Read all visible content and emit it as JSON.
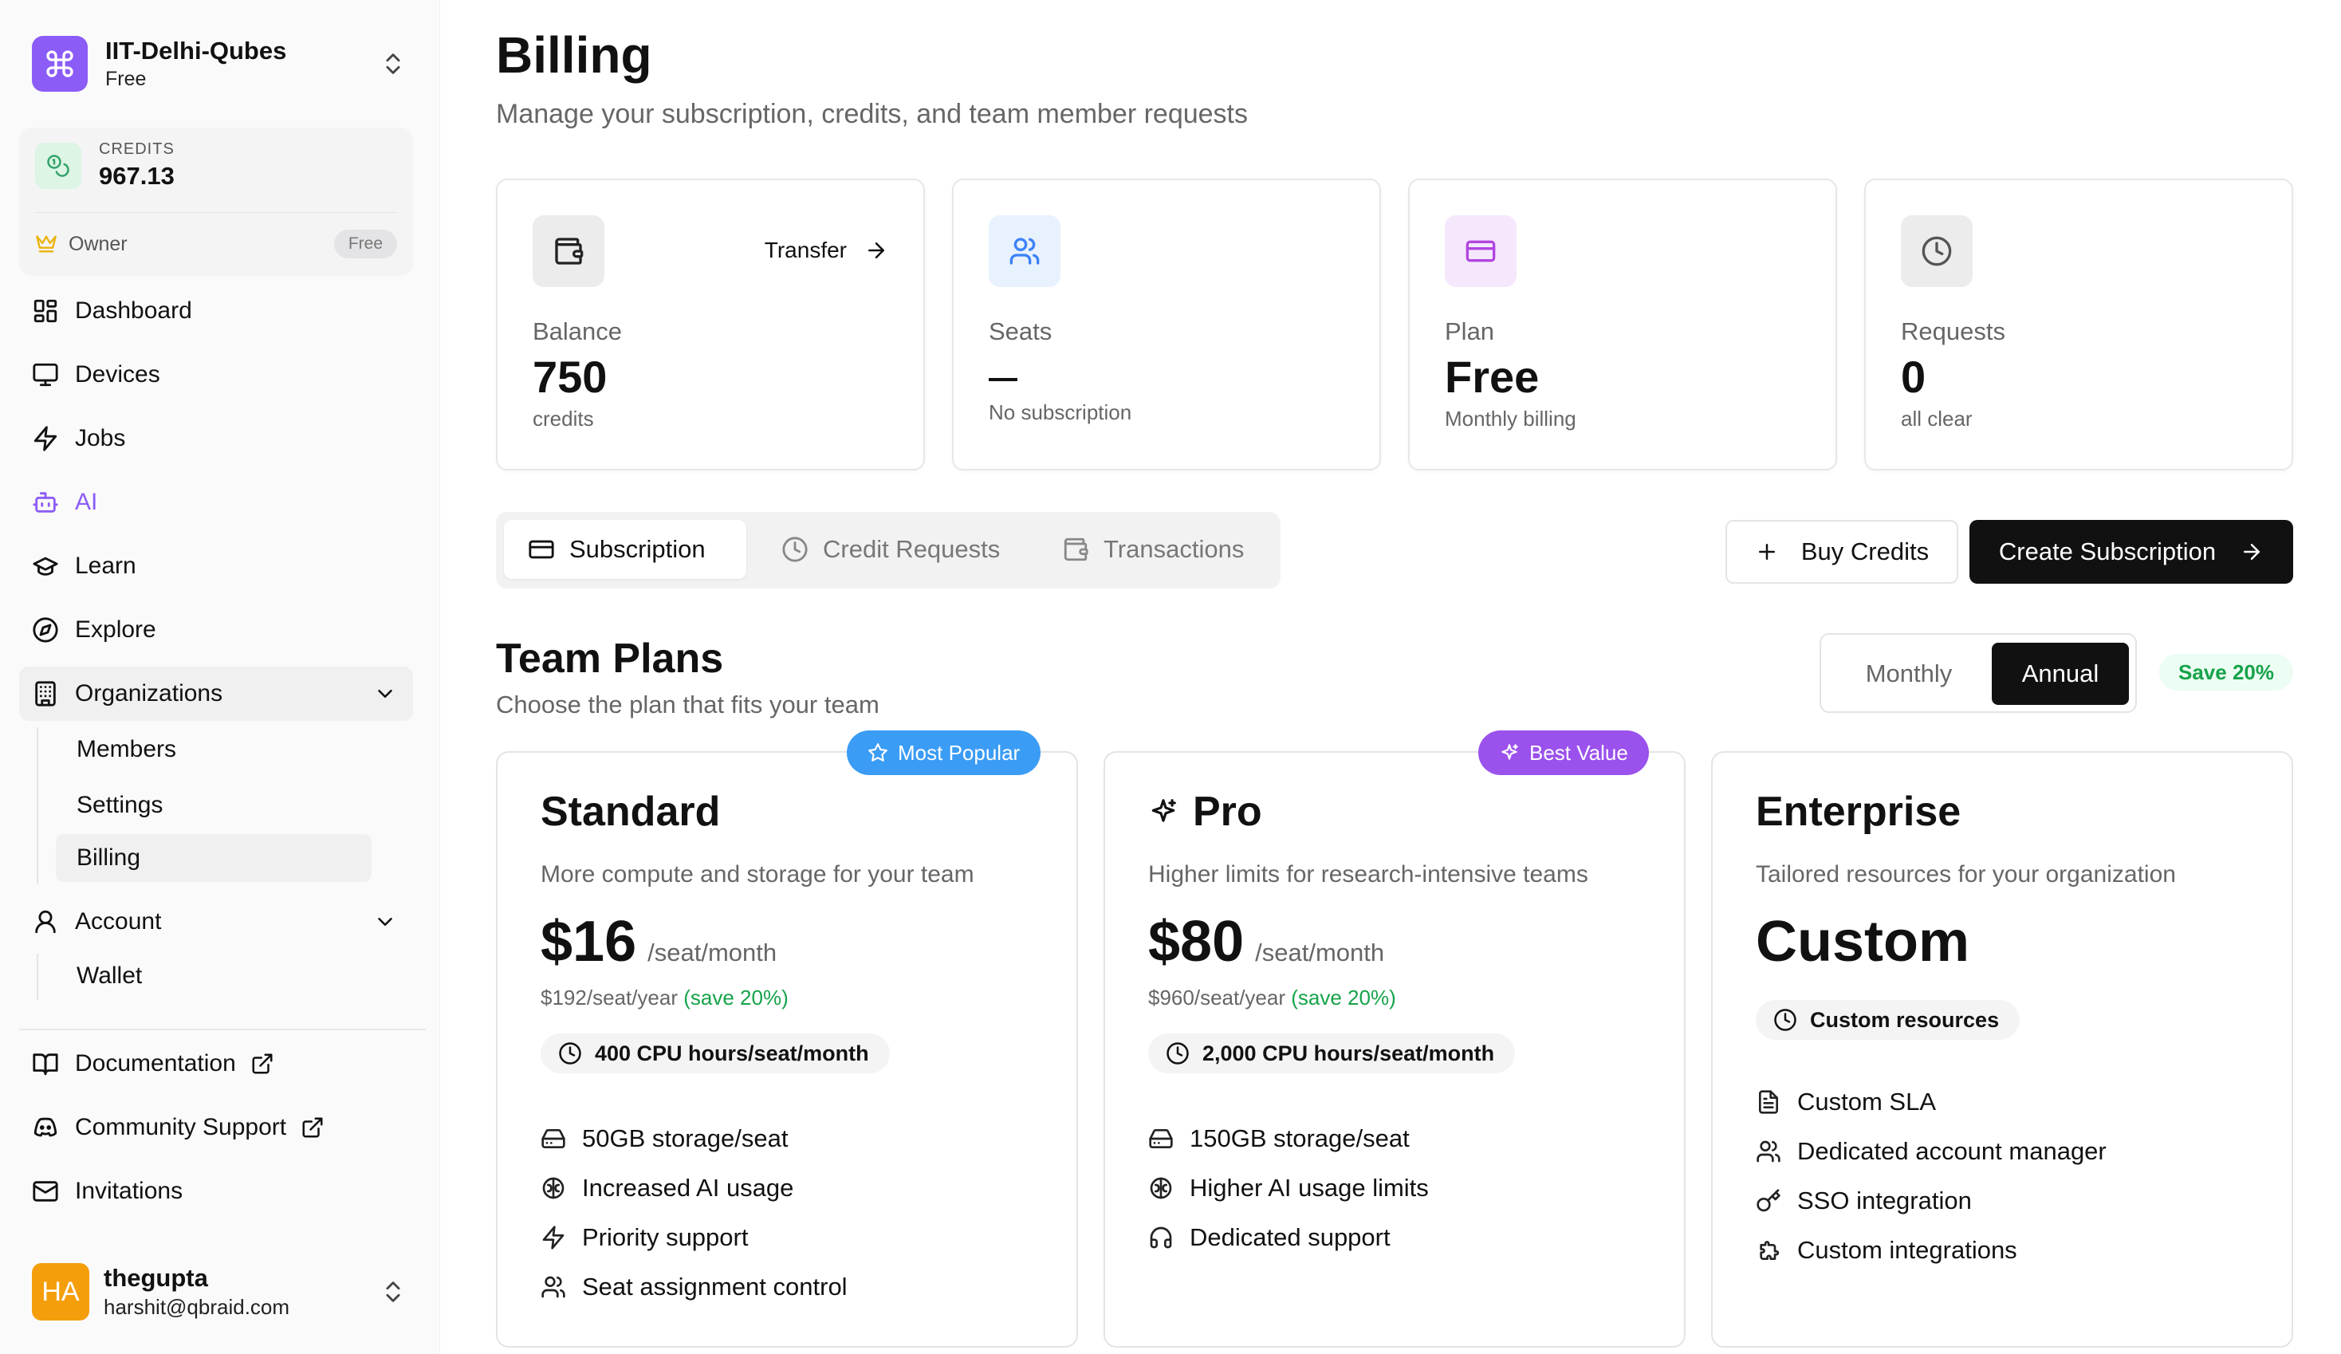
{
  "sidebar": {
    "org_name": "IIT-Delhi-Qubes",
    "org_plan": "Free",
    "credits_caption": "CREDITS",
    "credits_value": "967.13",
    "owner_label": "Owner",
    "owner_badge": "Free",
    "nav": {
      "dashboard": "Dashboard",
      "devices": "Devices",
      "jobs": "Jobs",
      "ai": "AI",
      "learn": "Learn",
      "explore": "Explore",
      "organizations": "Organizations",
      "members": "Members",
      "settings": "Settings",
      "billing": "Billing",
      "account": "Account",
      "wallet": "Wallet",
      "documentation": "Documentation",
      "community_support": "Community Support",
      "invitations": "Invitations"
    },
    "user": {
      "initials": "HA",
      "name": "thegupta",
      "email": "harshit@qbraid.com"
    }
  },
  "header": {
    "title": "Billing",
    "subtitle": "Manage your subscription, credits, and team member requests"
  },
  "stats": {
    "balance": {
      "label": "Balance",
      "value": "750",
      "caption": "credits",
      "action": "Transfer"
    },
    "seats": {
      "label": "Seats",
      "caption": "No subscription"
    },
    "plan": {
      "label": "Plan",
      "value": "Free",
      "caption": "Monthly billing"
    },
    "requests": {
      "label": "Requests",
      "value": "0",
      "caption": "all clear"
    }
  },
  "tabs": {
    "subscription": "Subscription",
    "credit_requests": "Credit Requests",
    "transactions": "Transactions"
  },
  "actions": {
    "buy_credits": "Buy Credits",
    "create_subscription": "Create Subscription"
  },
  "team_plans": {
    "title": "Team Plans",
    "subtitle": "Choose the plan that fits your team",
    "monthly": "Monthly",
    "annual": "Annual",
    "save_badge": "Save 20%"
  },
  "plans": {
    "standard": {
      "badge": "Most Popular",
      "name": "Standard",
      "description": "More compute and storage for your team",
      "price": "$16",
      "unit": "/seat/month",
      "yearly": "$192/seat/year",
      "save": "(save 20%)",
      "cpu": "400 CPU hours/seat/month",
      "features": [
        "50GB storage/seat",
        "Increased AI usage",
        "Priority support",
        "Seat assignment control"
      ]
    },
    "pro": {
      "badge": "Best Value",
      "name": "Pro",
      "description": "Higher limits for research-intensive teams",
      "price": "$80",
      "unit": "/seat/month",
      "yearly": "$960/seat/year",
      "save": "(save 20%)",
      "cpu": "2,000 CPU hours/seat/month",
      "features": [
        "150GB storage/seat",
        "Higher AI usage limits",
        "Dedicated support"
      ]
    },
    "enterprise": {
      "name": "Enterprise",
      "description": "Tailored resources for your organization",
      "price": "Custom",
      "resources": "Custom resources",
      "features": [
        "Custom SLA",
        "Dedicated account manager",
        "SSO integration",
        "Custom integrations"
      ]
    }
  },
  "colors": {
    "accent_purple": "#8b5cf6",
    "popular_blue": "#3b9cf5",
    "save_green": "#16a34a",
    "primary_dark": "#111111"
  }
}
